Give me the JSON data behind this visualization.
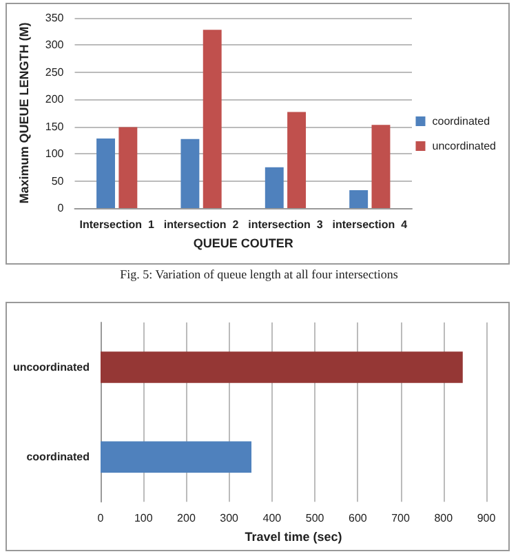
{
  "chart_data": [
    {
      "type": "bar",
      "xlabel": "QUEUE COUTER",
      "ylabel": "Maximum QUEUE LENGTH (M)",
      "annotations": [
        "Fig. 5: Variation of queue length at all four intersections"
      ],
      "categories": [
        "Intersection  1",
        "intersection  2",
        "intersection  3",
        "intersection  4"
      ],
      "series": [
        {
          "name": "coordinated",
          "color": "#4f81bd",
          "values": [
            128,
            127,
            75,
            33
          ]
        },
        {
          "name": "uncordinated",
          "color": "#c0504d",
          "values": [
            149,
            328,
            177,
            153
          ]
        }
      ],
      "ylim": [
        0,
        350
      ],
      "yticks": [
        0,
        50,
        100,
        150,
        200,
        250,
        300,
        350
      ],
      "grid": "y",
      "legend": "right"
    },
    {
      "type": "bar",
      "orientation": "horizontal",
      "xlabel": "Travel time (sec)",
      "categories": [
        "uncoordinated",
        "coordinated"
      ],
      "values": [
        845,
        352
      ],
      "colors": [
        "#953735",
        "#4f81bd"
      ],
      "xlim": [
        0,
        900
      ],
      "xticks": [
        0,
        100,
        200,
        300,
        400,
        500,
        600,
        700,
        800,
        900
      ],
      "grid": "x"
    }
  ]
}
